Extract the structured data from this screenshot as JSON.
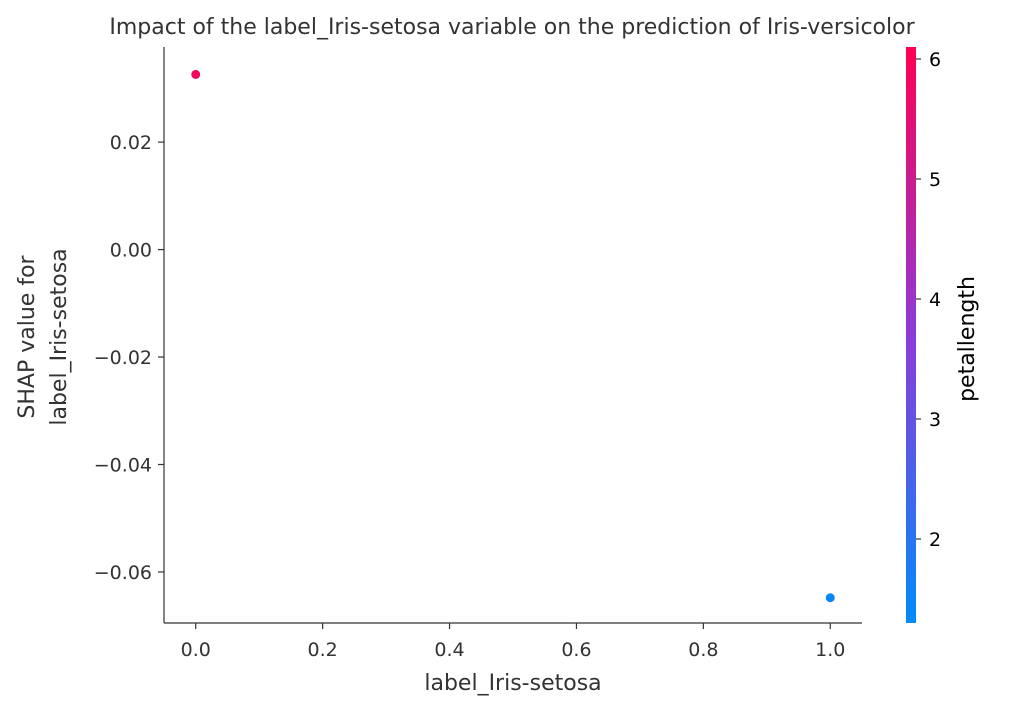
{
  "chart_data": {
    "type": "scatter",
    "title": "Impact of the label_Iris-setosa variable on the prediction of Iris-versicolor",
    "xlabel": "label_Iris-setosa",
    "ylabel_lines": [
      "SHAP value for",
      "label_Iris-setosa"
    ],
    "xlim": [
      -0.05,
      1.05
    ],
    "ylim": [
      -0.0695,
      0.0377
    ],
    "xticks": [
      0.0,
      0.2,
      0.4,
      0.6,
      0.8,
      1.0
    ],
    "xtick_labels": [
      "0.0",
      "0.2",
      "0.4",
      "0.6",
      "0.8",
      "1.0"
    ],
    "yticks": [
      0.02,
      0.0,
      -0.02,
      -0.04,
      -0.06
    ],
    "ytick_labels": [
      "0.02",
      "0.00",
      "−0.02",
      "−0.04",
      "−0.06"
    ],
    "grid": false,
    "points": [
      {
        "x": 0.0,
        "y": 0.0326,
        "color_value": 5.8
      },
      {
        "x": 1.0,
        "y": -0.0648,
        "color_value": 1.45
      }
    ],
    "colorbar": {
      "label": "petallength",
      "range": [
        1.3,
        6.1
      ],
      "ticks": [
        2,
        3,
        4,
        5,
        6
      ],
      "tick_labels": [
        "2",
        "3",
        "4",
        "5",
        "6"
      ],
      "colors": [
        "#008bfb",
        "#ff0052"
      ]
    }
  }
}
